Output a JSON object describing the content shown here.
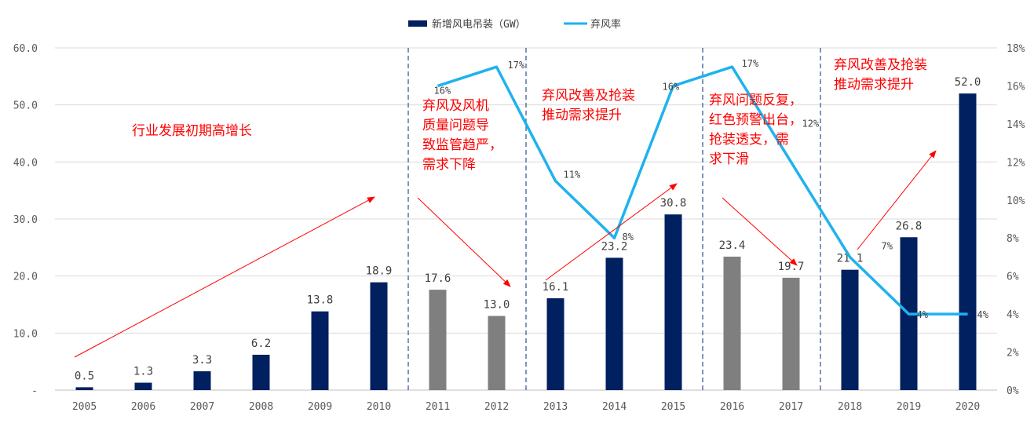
{
  "chart_data": {
    "type": "bar+line",
    "categories": [
      "2005",
      "2006",
      "2007",
      "2008",
      "2009",
      "2010",
      "2011",
      "2012",
      "2013",
      "2014",
      "2015",
      "2016",
      "2017",
      "2018",
      "2019",
      "2020"
    ],
    "series": [
      {
        "name": "新增风电吊装（GW）",
        "type": "bar",
        "axis": "left",
        "values": [
          0.5,
          1.3,
          3.3,
          6.2,
          13.8,
          18.9,
          17.6,
          13.0,
          16.1,
          23.2,
          30.8,
          23.4,
          19.7,
          21.1,
          26.8,
          52.0
        ],
        "value_labels": [
          "0.5",
          "1.3",
          "3.3",
          "6.2",
          "13.8",
          "18.9",
          "17.6",
          "13.0",
          "16.1",
          "23.2",
          "30.8",
          "23.4",
          "19.7",
          "21.1",
          "26.8",
          "52.0"
        ],
        "color": "#002060",
        "highlight_color": "#7f7f7f",
        "gray_categories": [
          "2011",
          "2012",
          "2016",
          "2017"
        ]
      },
      {
        "name": "弃风率",
        "type": "line",
        "axis": "right",
        "x": [
          "2011",
          "2012",
          "2013",
          "2014",
          "2015",
          "2016",
          "2017",
          "2018",
          "2019",
          "2020"
        ],
        "values": [
          16,
          17,
          11,
          8,
          16,
          17,
          12,
          7,
          4,
          4
        ],
        "value_labels": [
          "16%",
          "17%",
          "11%",
          "8%",
          "16%",
          "17%",
          "12%",
          "7%",
          "4%",
          "4%"
        ],
        "color": "#1fb2ee"
      }
    ],
    "y_left": {
      "range": [
        0,
        60
      ],
      "ticks": [
        "-",
        "10.0",
        "20.0",
        "30.0",
        "40.0",
        "50.0",
        "60.0"
      ]
    },
    "y_right": {
      "range": [
        0,
        18
      ],
      "ticks": [
        "0%",
        "2%",
        "4%",
        "6%",
        "8%",
        "10%",
        "12%",
        "14%",
        "16%",
        "18%"
      ]
    },
    "grid": true,
    "legend": "top-center",
    "period_dividers_after": [
      "2010",
      "2012",
      "2015",
      "2017"
    ],
    "annotations": [
      {
        "lines": [
          "行业发展初期高增长"
        ]
      },
      {
        "lines": [
          "弃风及风机",
          "质量问题导",
          "致监管趋严，",
          "需求下降"
        ]
      },
      {
        "lines": [
          "弃风改善及抢装",
          "推动需求提升"
        ]
      },
      {
        "lines": [
          "弃风问题反复，",
          "红色预警出台，",
          "抢装透支，需",
          "求下滑"
        ]
      },
      {
        "lines": [
          "弃风改善及抢装",
          "推动需求提升"
        ]
      }
    ],
    "annotation_color": "#ff0000"
  }
}
